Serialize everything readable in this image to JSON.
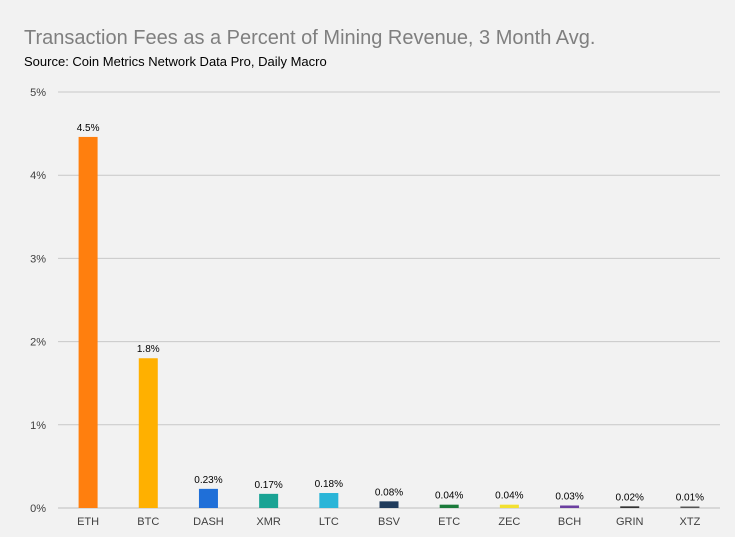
{
  "chart_data": {
    "type": "bar",
    "title": "Transaction Fees as a Percent of Mining Revenue, 3 Month Avg.",
    "subtitle": "Source: Coin Metrics Network Data Pro, Daily Macro",
    "xlabel": "",
    "ylabel": "",
    "ylim": [
      0,
      5
    ],
    "y_ticks": [
      "0%",
      "1%",
      "2%",
      "3%",
      "4%",
      "5%"
    ],
    "grid": true,
    "categories": [
      "ETH",
      "BTC",
      "DASH",
      "XMR",
      "LTC",
      "BSV",
      "ETC",
      "ZEC",
      "BCH",
      "GRIN",
      "XTZ"
    ],
    "values": [
      4.46,
      1.8,
      0.23,
      0.17,
      0.18,
      0.08,
      0.04,
      0.04,
      0.03,
      0.02,
      0.01
    ],
    "data_labels": [
      "4.5%",
      "1.8%",
      "0.23%",
      "0.17%",
      "0.18%",
      "0.08%",
      "0.04%",
      "0.04%",
      "0.03%",
      "0.02%",
      "0.01%"
    ],
    "colors": [
      "#ff7f0e",
      "#ffb000",
      "#1f6fd8",
      "#1aa394",
      "#2ab5d8",
      "#1f3b5c",
      "#1a7a3a",
      "#f2e030",
      "#6b3fa0",
      "#333333",
      "#555555"
    ]
  }
}
